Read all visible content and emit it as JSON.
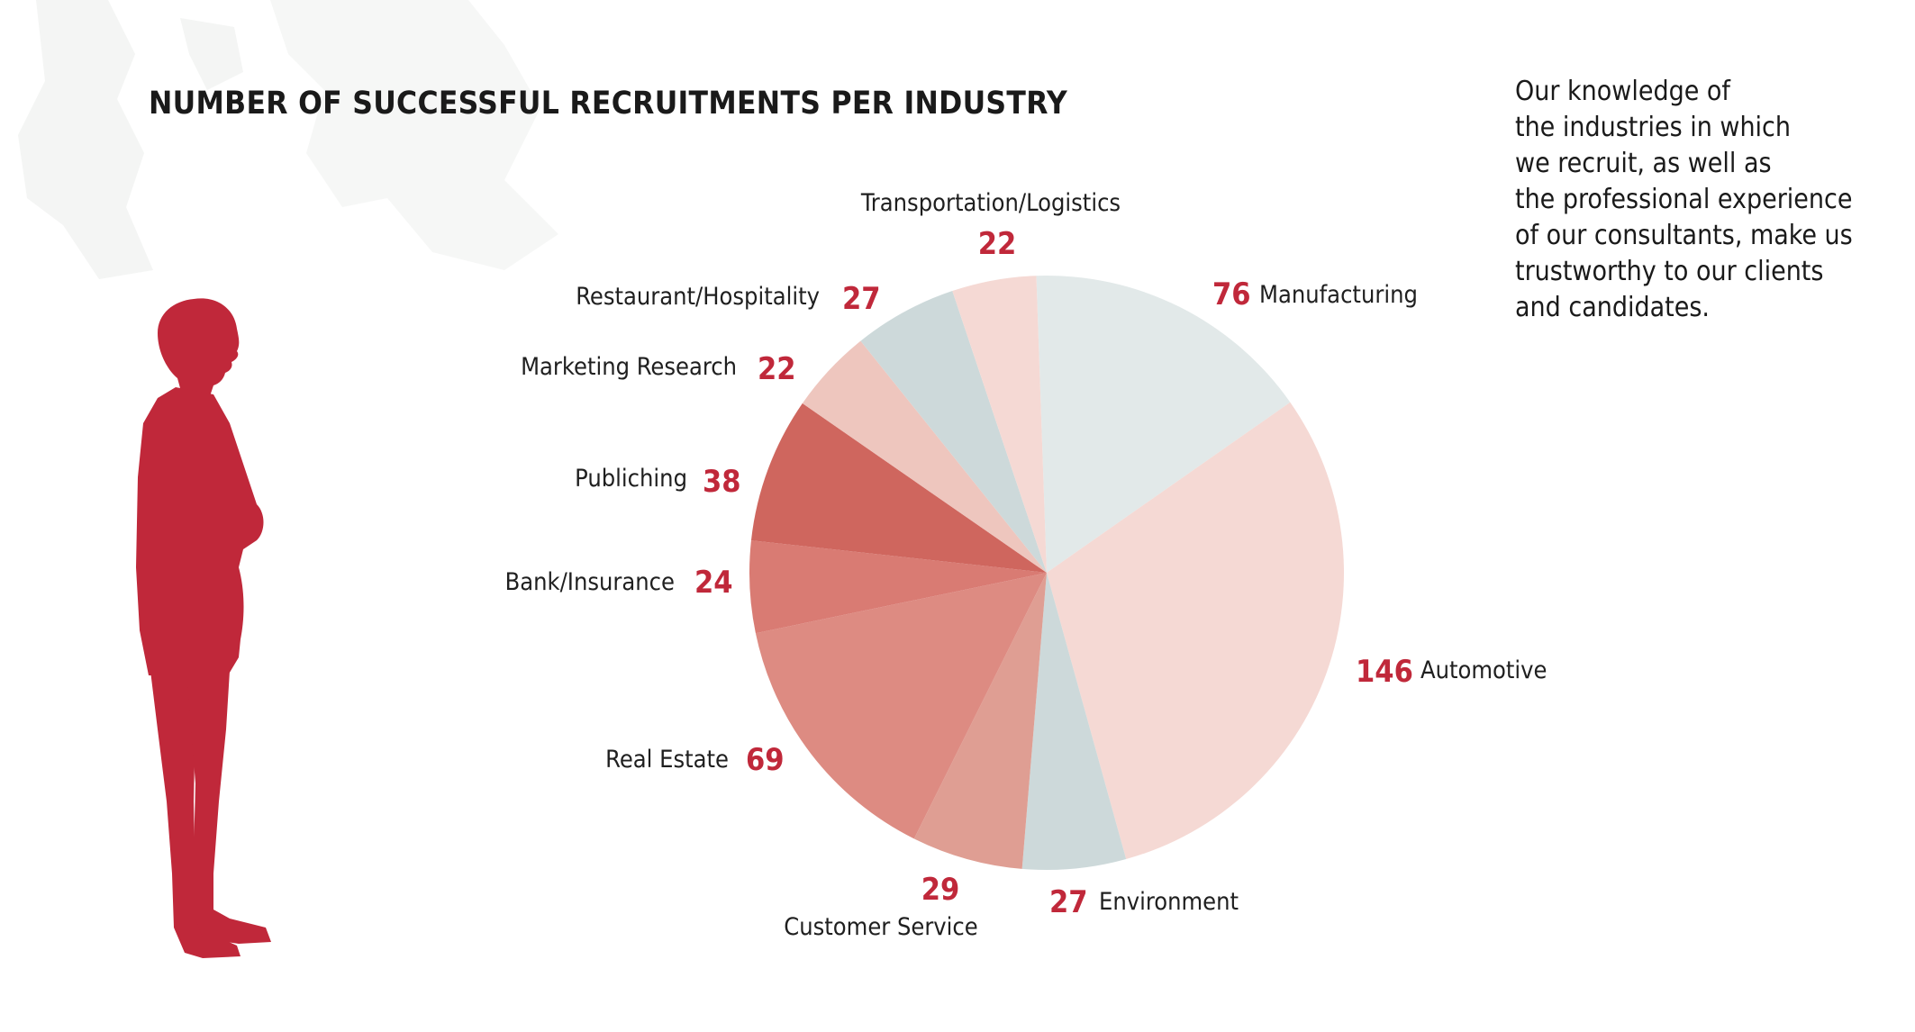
{
  "title": "NUMBER OF SUCCESSFUL RECRUITMENTS PER INDUSTRY",
  "note_lines": [
    "Our knowledge of",
    "the industries in which",
    "we recruit, as well as",
    "the professional experience",
    "of our consultants, make us",
    "trustworthy to our clients",
    "and candidates."
  ],
  "colors": {
    "accent": "#c0283a",
    "silhouette": "#c0283a",
    "text": "#1a1a1a"
  },
  "chart_data": {
    "type": "pie",
    "title": "NUMBER OF SUCCESSFUL RECRUITMENTS PER INDUSTRY",
    "categories": [
      "Manufacturing",
      "Automotive",
      "Environment",
      "Customer Service",
      "Real Estate",
      "Bank/Insurance",
      "Publiching",
      "Marketing Research",
      "Restaurant/Hospitality",
      "Transportation/Logistics"
    ],
    "values": [
      76,
      146,
      27,
      29,
      69,
      24,
      38,
      22,
      27,
      22
    ],
    "colors": [
      "#e2e9e9",
      "#f5d9d4",
      "#cdd9da",
      "#df9e93",
      "#dd8b82",
      "#d97b73",
      "#cf665e",
      "#eec6be",
      "#cdd9da",
      "#f5d9d4"
    ],
    "start_angle_deg": -2,
    "direction": "clockwise",
    "legend": "none"
  }
}
